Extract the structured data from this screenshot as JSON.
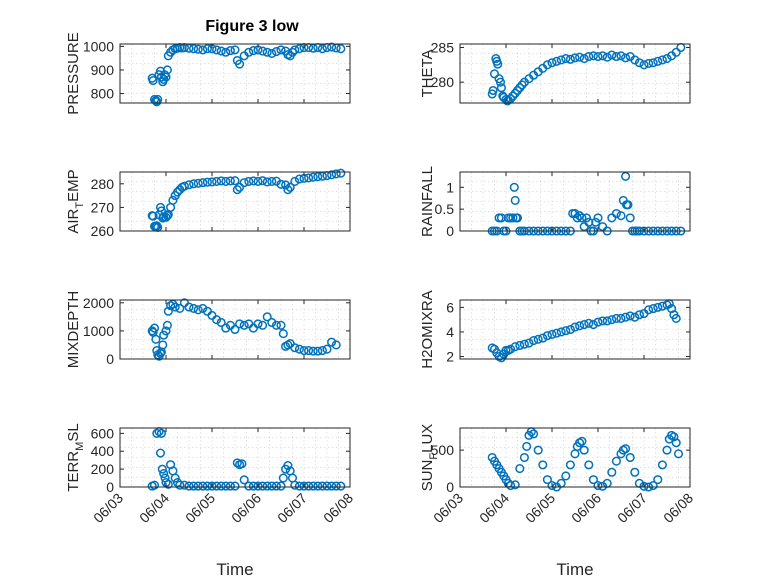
{
  "figure": {
    "title": "Figure 3 low"
  },
  "chart_data": [
    {
      "type": "scatter",
      "title": "Figure 3 low",
      "ylabel": "PRESSURE",
      "ylabel_sub": "",
      "ylim": [
        760,
        1010
      ],
      "yticks": [
        800,
        900,
        1000
      ],
      "ytick_labels": [
        "800",
        "900",
        "1000"
      ],
      "xlim": [
        0,
        5
      ],
      "xticks": [
        0,
        1,
        2,
        3,
        4,
        5
      ],
      "xtick_labels": [
        "06/03",
        "06/04",
        "06/05",
        "06/06",
        "06/07",
        "06/08"
      ],
      "xlabel": "",
      "color": "#0072BD",
      "grid": true,
      "x": [
        0.7,
        0.72,
        0.75,
        0.78,
        0.8,
        0.82,
        0.85,
        0.88,
        0.9,
        0.93,
        0.95,
        0.97,
        1.0,
        1.03,
        1.05,
        1.1,
        1.15,
        1.2,
        1.25,
        1.3,
        1.35,
        1.4,
        1.5,
        1.6,
        1.7,
        1.8,
        1.9,
        2.0,
        2.1,
        2.2,
        2.3,
        2.4,
        2.5,
        2.55,
        2.6,
        2.7,
        2.8,
        2.9,
        3.0,
        3.1,
        3.2,
        3.3,
        3.4,
        3.5,
        3.6,
        3.65,
        3.7,
        3.75,
        3.8,
        3.9,
        4.0,
        4.1,
        4.2,
        4.3,
        4.4,
        4.5,
        4.6,
        4.7,
        4.8
      ],
      "y": [
        865,
        855,
        775,
        770,
        765,
        775,
        880,
        895,
        870,
        850,
        860,
        880,
        870,
        900,
        960,
        975,
        985,
        990,
        992,
        995,
        993,
        995,
        992,
        990,
        988,
        985,
        990,
        990,
        985,
        980,
        975,
        982,
        985,
        940,
        925,
        960,
        975,
        982,
        985,
        980,
        975,
        970,
        978,
        985,
        980,
        965,
        960,
        975,
        985,
        990,
        995,
        995,
        992,
        995,
        990,
        995,
        997,
        993,
        990
      ]
    },
    {
      "type": "scatter",
      "ylabel": "THETA",
      "ylabel_sub": "",
      "ylim": [
        277,
        285.5
      ],
      "yticks": [
        280,
        285
      ],
      "ytick_labels": [
        "280",
        "285"
      ],
      "xlim": [
        0,
        5
      ],
      "xticks": [
        0,
        1,
        2,
        3,
        4,
        5
      ],
      "xtick_labels": [
        "06/03",
        "06/04",
        "06/05",
        "06/06",
        "06/07",
        "06/08"
      ],
      "xlabel": "",
      "color": "#0072BD",
      "grid": true,
      "x": [
        0.7,
        0.72,
        0.75,
        0.78,
        0.8,
        0.82,
        0.85,
        0.88,
        0.9,
        0.93,
        0.95,
        1.0,
        1.03,
        1.05,
        1.1,
        1.15,
        1.2,
        1.25,
        1.3,
        1.35,
        1.4,
        1.5,
        1.6,
        1.7,
        1.8,
        1.9,
        2.0,
        2.1,
        2.2,
        2.3,
        2.4,
        2.5,
        2.6,
        2.7,
        2.8,
        2.9,
        3.0,
        3.1,
        3.2,
        3.3,
        3.4,
        3.5,
        3.6,
        3.7,
        3.8,
        3.9,
        4.0,
        4.1,
        4.2,
        4.3,
        4.4,
        4.5,
        4.6,
        4.7,
        4.8
      ],
      "y": [
        278.3,
        278.8,
        281.2,
        283.4,
        283,
        282.6,
        280.5,
        280,
        279.2,
        278,
        277.8,
        277.5,
        277.3,
        277.4,
        277.6,
        278,
        278.4,
        278.8,
        279.2,
        279.6,
        280,
        280.5,
        281,
        281.5,
        282,
        282.5,
        282.8,
        283,
        283.2,
        283.4,
        283.3,
        283.5,
        283.6,
        283.4,
        283.7,
        283.8,
        283.7,
        283.8,
        283.6,
        283.9,
        283.7,
        283.8,
        283.5,
        283.7,
        283.2,
        282.8,
        282.5,
        282.7,
        282.8,
        283,
        283.2,
        283.4,
        283.8,
        284.3,
        285
      ]
    },
    {
      "type": "scatter",
      "ylabel": "AIR",
      "ylabel_sub": "T",
      "ylabel_rest": "EMP",
      "ylim": [
        260,
        285
      ],
      "yticks": [
        260,
        270,
        280
      ],
      "ytick_labels": [
        "260",
        "270",
        "280"
      ],
      "xlim": [
        0,
        5
      ],
      "xticks": [
        0,
        1,
        2,
        3,
        4,
        5
      ],
      "xtick_labels": [
        "06/03",
        "06/04",
        "06/05",
        "06/06",
        "06/07",
        "06/08"
      ],
      "xlabel": "",
      "color": "#0072BD",
      "grid": true,
      "x": [
        0.7,
        0.72,
        0.75,
        0.78,
        0.8,
        0.82,
        0.85,
        0.88,
        0.9,
        0.93,
        0.95,
        1.0,
        1.03,
        1.05,
        1.1,
        1.15,
        1.2,
        1.25,
        1.3,
        1.35,
        1.4,
        1.5,
        1.6,
        1.7,
        1.8,
        1.9,
        2.0,
        2.1,
        2.2,
        2.3,
        2.4,
        2.5,
        2.55,
        2.6,
        2.7,
        2.8,
        2.9,
        3.0,
        3.1,
        3.2,
        3.3,
        3.4,
        3.5,
        3.6,
        3.65,
        3.7,
        3.8,
        3.9,
        4.0,
        4.1,
        4.2,
        4.3,
        4.4,
        4.5,
        4.6,
        4.7,
        4.8
      ],
      "y": [
        266.5,
        266.3,
        262,
        261.8,
        262.2,
        261.5,
        266.8,
        270,
        268.5,
        265.5,
        266,
        265.8,
        266.5,
        267,
        270,
        273,
        275,
        276.5,
        277.5,
        278.5,
        279,
        279.6,
        280,
        280.2,
        280.5,
        280.7,
        280.8,
        281,
        281.2,
        281,
        281.2,
        281.3,
        277.5,
        278.5,
        280.5,
        281,
        281.2,
        281,
        281.3,
        280.8,
        281,
        281.1,
        279.8,
        279.5,
        277.5,
        278.5,
        281,
        282,
        282.3,
        282.5,
        282.8,
        283,
        283.2,
        283.5,
        283.8,
        284.2,
        284.5
      ]
    },
    {
      "type": "scatter",
      "ylabel": "RAINFALL",
      "ylabel_sub": "",
      "ylim": [
        0,
        1.35
      ],
      "yticks": [
        0,
        0.5,
        1
      ],
      "ytick_labels": [
        "0",
        "0.5",
        "1"
      ],
      "xlim": [
        0,
        5
      ],
      "xticks": [
        0,
        1,
        2,
        3,
        4,
        5
      ],
      "xtick_labels": [
        "06/03",
        "06/04",
        "06/05",
        "06/06",
        "06/07",
        "06/08"
      ],
      "xlabel": "",
      "color": "#0072BD",
      "grid": true,
      "x": [
        0.7,
        0.75,
        0.8,
        0.85,
        0.9,
        0.95,
        1.0,
        1.05,
        1.1,
        1.15,
        1.18,
        1.2,
        1.22,
        1.25,
        1.3,
        1.35,
        1.4,
        1.5,
        1.6,
        1.7,
        1.8,
        1.9,
        2.0,
        2.1,
        2.2,
        2.3,
        2.4,
        2.45,
        2.5,
        2.55,
        2.6,
        2.65,
        2.7,
        2.75,
        2.8,
        2.85,
        2.9,
        2.95,
        3.0,
        3.1,
        3.2,
        3.3,
        3.4,
        3.5,
        3.55,
        3.6,
        3.62,
        3.65,
        3.7,
        3.75,
        3.8,
        3.85,
        3.9,
        4.0,
        4.1,
        4.2,
        4.3,
        4.4,
        4.5,
        4.6,
        4.7,
        4.8
      ],
      "y": [
        0,
        0,
        0,
        0.3,
        0.3,
        0,
        0,
        0.3,
        0.3,
        0.3,
        1.0,
        0.7,
        0.3,
        0.3,
        0,
        0,
        0,
        0,
        0,
        0,
        0,
        0,
        0,
        0,
        0,
        0,
        0,
        0.4,
        0.4,
        0.3,
        0.35,
        0.3,
        0.1,
        0.3,
        0.2,
        0,
        0,
        0.2,
        0.3,
        0.1,
        0,
        0.3,
        0.4,
        0.35,
        0.7,
        1.25,
        0.6,
        0.6,
        0.3,
        0,
        0,
        0,
        0,
        0,
        0,
        0,
        0,
        0,
        0,
        0,
        0,
        0
      ]
    },
    {
      "type": "scatter",
      "ylabel": "MIXDEPTH",
      "ylabel_sub": "",
      "ylim": [
        0,
        2100
      ],
      "yticks": [
        0,
        1000,
        2000
      ],
      "ytick_labels": [
        "0",
        "1000",
        "2000"
      ],
      "xlim": [
        0,
        5
      ],
      "xticks": [
        0,
        1,
        2,
        3,
        4,
        5
      ],
      "xtick_labels": [
        "06/03",
        "06/04",
        "06/05",
        "06/06",
        "06/07",
        "06/08"
      ],
      "xlabel": "",
      "color": "#0072BD",
      "grid": true,
      "x": [
        0.7,
        0.72,
        0.75,
        0.78,
        0.8,
        0.82,
        0.85,
        0.88,
        0.9,
        0.93,
        0.95,
        1.0,
        1.03,
        1.05,
        1.1,
        1.15,
        1.2,
        1.3,
        1.4,
        1.5,
        1.6,
        1.7,
        1.8,
        1.9,
        2.0,
        2.1,
        2.2,
        2.3,
        2.4,
        2.5,
        2.6,
        2.7,
        2.8,
        2.9,
        3.0,
        3.1,
        3.2,
        3.3,
        3.4,
        3.5,
        3.55,
        3.6,
        3.65,
        3.7,
        3.8,
        3.9,
        4.0,
        4.1,
        4.2,
        4.3,
        4.4,
        4.5,
        4.6,
        4.7
      ],
      "y": [
        1000,
        950,
        1100,
        700,
        300,
        150,
        100,
        200,
        250,
        500,
        850,
        1000,
        1200,
        1700,
        1900,
        1950,
        1850,
        1800,
        2000,
        1850,
        1800,
        1750,
        1800,
        1700,
        1550,
        1400,
        1300,
        1100,
        1200,
        1050,
        1250,
        1200,
        1250,
        1100,
        1250,
        1200,
        1500,
        1300,
        1200,
        1200,
        900,
        450,
        500,
        550,
        400,
        350,
        300,
        300,
        280,
        280,
        300,
        350,
        600,
        500
      ]
    },
    {
      "type": "scatter",
      "ylabel": "H2OMIXRA",
      "ylabel_sub": "",
      "ylim": [
        1.8,
        6.6
      ],
      "yticks": [
        2,
        4,
        6
      ],
      "ytick_labels": [
        "2",
        "4",
        "6"
      ],
      "xlim": [
        0,
        5
      ],
      "xticks": [
        0,
        1,
        2,
        3,
        4,
        5
      ],
      "xtick_labels": [
        "06/03",
        "06/04",
        "06/05",
        "06/06",
        "06/07",
        "06/08"
      ],
      "xlabel": "",
      "color": "#0072BD",
      "grid": true,
      "x": [
        0.7,
        0.75,
        0.8,
        0.85,
        0.9,
        0.95,
        1.0,
        1.05,
        1.1,
        1.2,
        1.3,
        1.4,
        1.5,
        1.6,
        1.7,
        1.8,
        1.9,
        2.0,
        2.1,
        2.2,
        2.3,
        2.4,
        2.5,
        2.6,
        2.7,
        2.8,
        2.9,
        3.0,
        3.1,
        3.2,
        3.3,
        3.4,
        3.5,
        3.6,
        3.7,
        3.8,
        3.9,
        4.0,
        4.1,
        4.2,
        4.3,
        4.4,
        4.5,
        4.55,
        4.6,
        4.65,
        4.7
      ],
      "y": [
        2.7,
        2.6,
        2.3,
        2.0,
        1.9,
        2.2,
        2.5,
        2.5,
        2.6,
        2.8,
        2.9,
        3.0,
        3.1,
        3.3,
        3.4,
        3.5,
        3.7,
        3.8,
        3.9,
        4.0,
        4.1,
        4.2,
        4.4,
        4.5,
        4.6,
        4.7,
        4.6,
        4.8,
        4.9,
        4.9,
        5.0,
        5.1,
        5.1,
        5.2,
        5.3,
        5.2,
        5.4,
        5.5,
        5.8,
        5.9,
        6.0,
        6.1,
        6.2,
        6.3,
        5.9,
        5.4,
        5.1
      ]
    },
    {
      "type": "scatter",
      "ylabel": "TERR",
      "ylabel_sub": "M",
      "ylabel_rest": "SL",
      "ylim": [
        0,
        660
      ],
      "yticks": [
        0,
        200,
        400,
        600
      ],
      "ytick_labels": [
        "0",
        "200",
        "400",
        "600"
      ],
      "xlim": [
        0,
        5
      ],
      "xticks": [
        0,
        1,
        2,
        3,
        4,
        5
      ],
      "xtick_labels": [
        "06/03",
        "06/04",
        "06/05",
        "06/06",
        "06/07",
        "06/08"
      ],
      "xlabel": "Time",
      "color": "#0072BD",
      "grid": true,
      "x": [
        0.7,
        0.75,
        0.8,
        0.85,
        0.88,
        0.9,
        0.92,
        0.95,
        0.98,
        1.0,
        1.05,
        1.1,
        1.15,
        1.2,
        1.25,
        1.3,
        1.4,
        1.5,
        1.6,
        1.7,
        1.8,
        1.9,
        2.0,
        2.1,
        2.2,
        2.3,
        2.4,
        2.5,
        2.55,
        2.6,
        2.65,
        2.7,
        2.8,
        2.9,
        3.0,
        3.1,
        3.2,
        3.3,
        3.4,
        3.5,
        3.55,
        3.6,
        3.65,
        3.7,
        3.75,
        3.8,
        3.9,
        4.0,
        4.1,
        4.2,
        4.3,
        4.4,
        4.5,
        4.6,
        4.7,
        4.8
      ],
      "y": [
        10,
        20,
        600,
        620,
        380,
        600,
        200,
        150,
        100,
        50,
        30,
        250,
        180,
        100,
        50,
        20,
        20,
        10,
        10,
        10,
        10,
        10,
        10,
        10,
        10,
        10,
        10,
        10,
        270,
        250,
        260,
        80,
        10,
        10,
        10,
        10,
        10,
        10,
        10,
        10,
        100,
        200,
        240,
        180,
        100,
        20,
        10,
        10,
        10,
        10,
        10,
        10,
        10,
        10,
        10,
        10
      ]
    },
    {
      "type": "scatter",
      "ylabel": "SUN",
      "ylabel_sub": "F",
      "ylabel_rest": "LUX",
      "ylim": [
        0,
        800
      ],
      "yticks": [
        0,
        500
      ],
      "ytick_labels": [
        "0",
        "500"
      ],
      "xlim": [
        0,
        5
      ],
      "xticks": [
        0,
        1,
        2,
        3,
        4,
        5
      ],
      "xtick_labels": [
        "06/03",
        "06/04",
        "06/05",
        "06/06",
        "06/07",
        "06/08"
      ],
      "xlabel": "Time",
      "color": "#0072BD",
      "grid": true,
      "x": [
        0.7,
        0.75,
        0.8,
        0.85,
        0.9,
        0.95,
        1.0,
        1.05,
        1.1,
        1.2,
        1.3,
        1.4,
        1.45,
        1.5,
        1.55,
        1.6,
        1.7,
        1.8,
        1.9,
        2.0,
        2.1,
        2.2,
        2.3,
        2.4,
        2.5,
        2.55,
        2.6,
        2.65,
        2.7,
        2.8,
        2.9,
        3.0,
        3.1,
        3.2,
        3.3,
        3.4,
        3.5,
        3.55,
        3.6,
        3.7,
        3.8,
        3.9,
        4.0,
        4.1,
        4.2,
        4.3,
        4.4,
        4.5,
        4.55,
        4.6,
        4.65,
        4.7,
        4.75
      ],
      "y": [
        400,
        350,
        300,
        250,
        200,
        150,
        100,
        50,
        20,
        30,
        250,
        400,
        550,
        700,
        750,
        720,
        500,
        300,
        100,
        20,
        0,
        50,
        150,
        300,
        450,
        550,
        600,
        620,
        500,
        300,
        100,
        20,
        10,
        50,
        200,
        350,
        450,
        500,
        520,
        400,
        200,
        50,
        10,
        0,
        20,
        100,
        300,
        500,
        650,
        700,
        680,
        600,
        450
      ]
    }
  ]
}
